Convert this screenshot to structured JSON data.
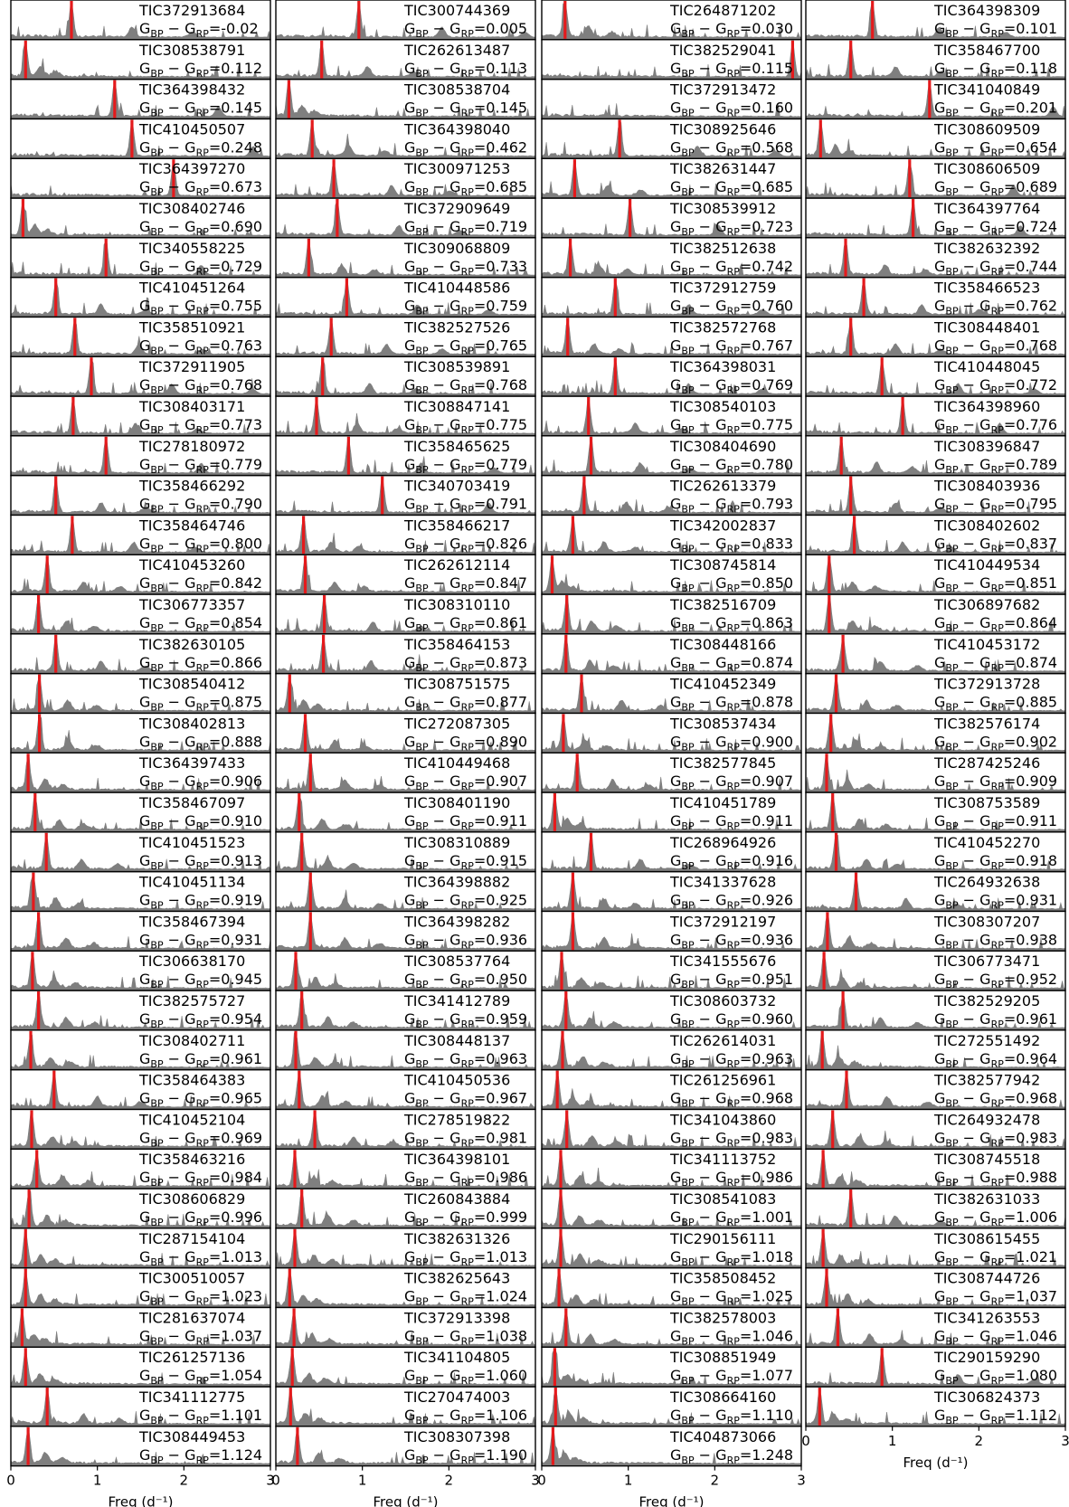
{
  "chart_data": {
    "type": "area",
    "layout": "small-multiples",
    "columns": 4,
    "x_axis": {
      "label": "Freq (d⁻¹)",
      "xlim": [
        0,
        3
      ],
      "ticks": [
        0,
        1,
        2,
        3
      ]
    },
    "color_label_prefix": "G_BP − G_RP=",
    "colors": {
      "spectrum": "#7f7f7f",
      "peak_line": "#e41a1c",
      "frame": "#000000"
    },
    "panels": [
      [
        {
          "tic": "TIC372913684",
          "color": "-0.02",
          "peak": 0.7
        },
        {
          "tic": "TIC308538791",
          "color": "0.112",
          "peak": 0.17
        },
        {
          "tic": "TIC364398432",
          "color": "0.145",
          "peak": 1.2
        },
        {
          "tic": "TIC410450507",
          "color": "0.248",
          "peak": 1.4
        },
        {
          "tic": "TIC364397270",
          "color": "0.673",
          "peak": 1.88
        },
        {
          "tic": "TIC308402746",
          "color": "0.690",
          "peak": 0.14
        },
        {
          "tic": "TIC340558225",
          "color": "0.729",
          "peak": 1.1
        },
        {
          "tic": "TIC410451264",
          "color": "0.755",
          "peak": 0.52
        },
        {
          "tic": "TIC358510921",
          "color": "0.763",
          "peak": 0.74
        },
        {
          "tic": "TIC372911905",
          "color": "0.768",
          "peak": 0.93
        },
        {
          "tic": "TIC308403171",
          "color": "0.773",
          "peak": 0.72
        },
        {
          "tic": "TIC278180972",
          "color": "0.779",
          "peak": 1.1
        },
        {
          "tic": "TIC358466292",
          "color": "0.790",
          "peak": 0.52
        },
        {
          "tic": "TIC358464746",
          "color": "0.800",
          "peak": 0.71
        },
        {
          "tic": "TIC410453260",
          "color": "0.842",
          "peak": 0.42
        },
        {
          "tic": "TIC306773357",
          "color": "0.854",
          "peak": 0.32
        },
        {
          "tic": "TIC382630105",
          "color": "0.866",
          "peak": 0.52
        },
        {
          "tic": "TIC308540412",
          "color": "0.875",
          "peak": 0.33
        },
        {
          "tic": "TIC308402813",
          "color": "0.888",
          "peak": 0.33
        },
        {
          "tic": "TIC364397433",
          "color": "0.906",
          "peak": 0.2
        },
        {
          "tic": "TIC358467097",
          "color": "0.910",
          "peak": 0.28
        },
        {
          "tic": "TIC410451523",
          "color": "0.913",
          "peak": 0.41
        },
        {
          "tic": "TIC410451134",
          "color": "0.919",
          "peak": 0.26
        },
        {
          "tic": "TIC358467394",
          "color": "0.931",
          "peak": 0.32
        },
        {
          "tic": "TIC306638170",
          "color": "0.945",
          "peak": 0.25
        },
        {
          "tic": "TIC382575727",
          "color": "0.954",
          "peak": 0.32
        },
        {
          "tic": "TIC308402711",
          "color": "0.961",
          "peak": 0.23
        },
        {
          "tic": "TIC358464383",
          "color": "0.965",
          "peak": 0.5
        },
        {
          "tic": "TIC410452104",
          "color": "0.969",
          "peak": 0.24
        },
        {
          "tic": "TIC358463216",
          "color": "0.984",
          "peak": 0.3
        },
        {
          "tic": "TIC308606829",
          "color": "0.996",
          "peak": 0.21
        },
        {
          "tic": "TIC287154104",
          "color": "1.013",
          "peak": 0.17
        },
        {
          "tic": "TIC300510057",
          "color": "1.023",
          "peak": 0.17
        },
        {
          "tic": "TIC281637074",
          "color": "1.037",
          "peak": 0.13
        },
        {
          "tic": "TIC261257136",
          "color": "1.054",
          "peak": 0.17
        },
        {
          "tic": "TIC341112775",
          "color": "1.101",
          "peak": 0.42
        },
        {
          "tic": "TIC308449453",
          "color": "1.124",
          "peak": 0.2
        }
      ],
      [
        {
          "tic": "TIC300744369",
          "color": "0.005",
          "peak": 0.96
        },
        {
          "tic": "TIC262613487",
          "color": "0.113",
          "peak": 0.53
        },
        {
          "tic": "TIC308538704",
          "color": "0.145",
          "peak": 0.15
        },
        {
          "tic": "TIC364398040",
          "color": "0.462",
          "peak": 0.42
        },
        {
          "tic": "TIC300971253",
          "color": "0.685",
          "peak": 0.67
        },
        {
          "tic": "TIC372909649",
          "color": "0.719",
          "peak": 0.71
        },
        {
          "tic": "TIC309068809",
          "color": "0.733",
          "peak": 0.38
        },
        {
          "tic": "TIC410448586",
          "color": "0.759",
          "peak": 0.82
        },
        {
          "tic": "TIC382527526",
          "color": "0.765",
          "peak": 0.64
        },
        {
          "tic": "TIC308539891",
          "color": "0.768",
          "peak": 0.54
        },
        {
          "tic": "TIC308847141",
          "color": "0.775",
          "peak": 0.47
        },
        {
          "tic": "TIC358465625",
          "color": "0.779",
          "peak": 0.84
        },
        {
          "tic": "TIC340703419",
          "color": "0.791",
          "peak": 1.23
        },
        {
          "tic": "TIC358466217",
          "color": "0.826",
          "peak": 0.32
        },
        {
          "tic": "TIC262612114",
          "color": "0.847",
          "peak": 0.34
        },
        {
          "tic": "TIC308310110",
          "color": "0.861",
          "peak": 0.56
        },
        {
          "tic": "TIC358464153",
          "color": "0.873",
          "peak": 0.55
        },
        {
          "tic": "TIC308751575",
          "color": "0.877",
          "peak": 0.16
        },
        {
          "tic": "TIC272087305",
          "color": "0.890",
          "peak": 0.34
        },
        {
          "tic": "TIC410449468",
          "color": "0.907",
          "peak": 0.4
        },
        {
          "tic": "TIC308401190",
          "color": "0.911",
          "peak": 0.27
        },
        {
          "tic": "TIC308310889",
          "color": "0.915",
          "peak": 0.3
        },
        {
          "tic": "TIC364398882",
          "color": "0.925",
          "peak": 0.4
        },
        {
          "tic": "TIC364398282",
          "color": "0.936",
          "peak": 0.4
        },
        {
          "tic": "TIC308537764",
          "color": "0.950",
          "peak": 0.23
        },
        {
          "tic": "TIC341412789",
          "color": "0.959",
          "peak": 0.3
        },
        {
          "tic": "TIC308448137",
          "color": "0.963",
          "peak": 0.23
        },
        {
          "tic": "TIC410450536",
          "color": "0.967",
          "peak": 0.27
        },
        {
          "tic": "TIC278519822",
          "color": "0.981",
          "peak": 0.45
        },
        {
          "tic": "TIC364398101",
          "color": "0.986",
          "peak": 0.22
        },
        {
          "tic": "TIC260843884",
          "color": "0.999",
          "peak": 0.3
        },
        {
          "tic": "TIC382631326",
          "color": "1.013",
          "peak": 0.22
        },
        {
          "tic": "TIC382625643",
          "color": "1.024",
          "peak": 0.16
        },
        {
          "tic": "TIC372913398",
          "color": "1.038",
          "peak": 0.21
        },
        {
          "tic": "TIC341104805",
          "color": "1.060",
          "peak": 0.19
        },
        {
          "tic": "TIC270474003",
          "color": "1.106",
          "peak": 0.17
        },
        {
          "tic": "TIC308307398",
          "color": "1.190",
          "peak": 0.25
        }
      ],
      [
        {
          "tic": "TIC264871202",
          "color": "0.030",
          "peak": 0.27
        },
        {
          "tic": "TIC382529041",
          "color": "0.115",
          "peak": 2.9
        },
        {
          "tic": "TIC372913472",
          "color": "0.160",
          "peak": null
        },
        {
          "tic": "TIC308925646",
          "color": "0.568",
          "peak": 0.9
        },
        {
          "tic": "TIC382631447",
          "color": "0.685",
          "peak": 0.38
        },
        {
          "tic": "TIC308539912",
          "color": "0.723",
          "peak": 1.02
        },
        {
          "tic": "TIC382512638",
          "color": "0.742",
          "peak": 0.33
        },
        {
          "tic": "TIC372912759",
          "color": "0.760",
          "peak": 0.85
        },
        {
          "tic": "TIC382572768",
          "color": "0.767",
          "peak": 0.3
        },
        {
          "tic": "TIC364398031",
          "color": "0.769",
          "peak": 0.85
        },
        {
          "tic": "TIC308540103",
          "color": "0.775",
          "peak": 0.54
        },
        {
          "tic": "TIC308404690",
          "color": "0.780",
          "peak": 0.57
        },
        {
          "tic": "TIC262613379",
          "color": "0.793",
          "peak": 0.49
        },
        {
          "tic": "TIC342002837",
          "color": "0.833",
          "peak": 0.36
        },
        {
          "tic": "TIC308745814",
          "color": "0.850",
          "peak": 0.12
        },
        {
          "tic": "TIC382516709",
          "color": "0.863",
          "peak": 0.29
        },
        {
          "tic": "TIC308448166",
          "color": "0.874",
          "peak": 0.28
        },
        {
          "tic": "TIC410452349",
          "color": "0.878",
          "peak": 0.46
        },
        {
          "tic": "TIC308537434",
          "color": "0.900",
          "peak": 0.25
        },
        {
          "tic": "TIC382577845",
          "color": "0.907",
          "peak": 0.41
        },
        {
          "tic": "TIC410451789",
          "color": "0.911",
          "peak": 0.15
        },
        {
          "tic": "TIC268964926",
          "color": "0.916",
          "peak": 0.57
        },
        {
          "tic": "TIC341337628",
          "color": "0.926",
          "peak": 0.36
        },
        {
          "tic": "TIC372912197",
          "color": "0.936",
          "peak": 0.36
        },
        {
          "tic": "TIC341555676",
          "color": "0.951",
          "peak": 0.23
        },
        {
          "tic": "TIC308603732",
          "color": "0.960",
          "peak": 0.28
        },
        {
          "tic": "TIC262614031",
          "color": "0.963",
          "peak": 0.24
        },
        {
          "tic": "TIC261256961",
          "color": "0.968",
          "peak": 0.18
        },
        {
          "tic": "TIC341043860",
          "color": "0.983",
          "peak": 0.29
        },
        {
          "tic": "TIC341113752",
          "color": "0.986",
          "peak": 0.22
        },
        {
          "tic": "TIC308541083",
          "color": "1.001",
          "peak": 0.22
        },
        {
          "tic": "TIC290156111",
          "color": "1.018",
          "peak": 0.22
        },
        {
          "tic": "TIC358508452",
          "color": "1.025",
          "peak": 0.2
        },
        {
          "tic": "TIC382578003",
          "color": "1.046",
          "peak": 0.28
        },
        {
          "tic": "TIC308851949",
          "color": "1.077",
          "peak": 0.15
        },
        {
          "tic": "TIC308664160",
          "color": "1.110",
          "peak": 0.16
        },
        {
          "tic": "TIC404873066",
          "color": "1.248",
          "peak": 0.13
        }
      ],
      [
        {
          "tic": "TIC364398309",
          "color": "0.101",
          "peak": 0.77
        },
        {
          "tic": "TIC358467700",
          "color": "0.118",
          "peak": 0.52
        },
        {
          "tic": "TIC341040849",
          "color": "0.201",
          "peak": 1.43
        },
        {
          "tic": "TIC308609509",
          "color": "0.654",
          "peak": 0.17
        },
        {
          "tic": "TIC308606509",
          "color": "0.689",
          "peak": 1.2
        },
        {
          "tic": "TIC364397764",
          "color": "0.724",
          "peak": 1.24
        },
        {
          "tic": "TIC382632392",
          "color": "0.744",
          "peak": 0.46
        },
        {
          "tic": "TIC358466523",
          "color": "0.762",
          "peak": 0.67
        },
        {
          "tic": "TIC308448401",
          "color": "0.768",
          "peak": 0.52
        },
        {
          "tic": "TIC410448045",
          "color": "0.772",
          "peak": 0.88
        },
        {
          "tic": "TIC364398960",
          "color": "0.776",
          "peak": 1.12
        },
        {
          "tic": "TIC308396847",
          "color": "0.789",
          "peak": 0.41
        },
        {
          "tic": "TIC308403936",
          "color": "0.795",
          "peak": 0.52
        },
        {
          "tic": "TIC308402602",
          "color": "0.837",
          "peak": 0.56
        },
        {
          "tic": "TIC410449534",
          "color": "0.851",
          "peak": 0.27
        },
        {
          "tic": "TIC306897682",
          "color": "0.864",
          "peak": 0.27
        },
        {
          "tic": "TIC410453172",
          "color": "0.874",
          "peak": 0.43
        },
        {
          "tic": "TIC372913728",
          "color": "0.885",
          "peak": 0.35
        },
        {
          "tic": "TIC382576174",
          "color": "0.902",
          "peak": 0.29
        },
        {
          "tic": "TIC287425246",
          "color": "0.909",
          "peak": 0.24
        },
        {
          "tic": "TIC308753589",
          "color": "0.911",
          "peak": 0.31
        },
        {
          "tic": "TIC410452270",
          "color": "0.918",
          "peak": 0.35
        },
        {
          "tic": "TIC264932638",
          "color": "0.931",
          "peak": 0.58
        },
        {
          "tic": "TIC308307207",
          "color": "0.938",
          "peak": 0.25
        },
        {
          "tic": "TIC306773471",
          "color": "0.952",
          "peak": 0.21
        },
        {
          "tic": "TIC382529205",
          "color": "0.961",
          "peak": 0.43
        },
        {
          "tic": "TIC272551492",
          "color": "0.964",
          "peak": 0.19
        },
        {
          "tic": "TIC382577942",
          "color": "0.968",
          "peak": 0.47
        },
        {
          "tic": "TIC264932478",
          "color": "0.983",
          "peak": 0.31
        },
        {
          "tic": "TIC308745518",
          "color": "0.988",
          "peak": 0.2
        },
        {
          "tic": "TIC382631033",
          "color": "1.006",
          "peak": 0.52
        },
        {
          "tic": "TIC308615455",
          "color": "1.021",
          "peak": 0.2
        },
        {
          "tic": "TIC308744726",
          "color": "1.037",
          "peak": 0.24
        },
        {
          "tic": "TIC341263553",
          "color": "1.046",
          "peak": 0.37
        },
        {
          "tic": "TIC290159290",
          "color": "1.080",
          "peak": 0.88
        },
        {
          "tic": "TIC306824373",
          "color": "1.112",
          "peak": 0.16
        }
      ]
    ]
  }
}
